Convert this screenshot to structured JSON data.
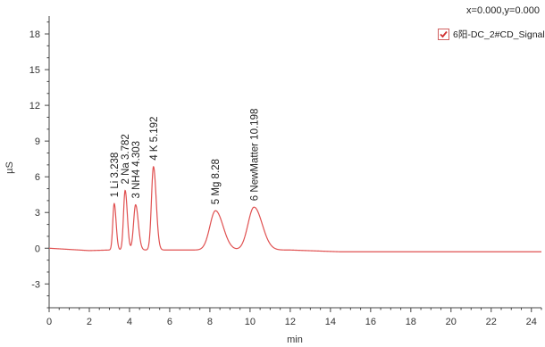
{
  "coord_readout": "x=0.000,y=0.000",
  "legend": {
    "series_label": "6阳-DC_2#CD_Signal",
    "checked": true
  },
  "colors": {
    "trace": "#e05050",
    "check": "#d03030",
    "axis": "#444444"
  },
  "chart_data": {
    "type": "line",
    "title": "",
    "xlabel": "min",
    "ylabel": "µS",
    "xlim": [
      0,
      24.5
    ],
    "ylim": [
      -5,
      19.5
    ],
    "x_ticks": [
      0,
      2,
      4,
      6,
      8,
      10,
      12,
      14,
      16,
      18,
      20,
      22,
      24
    ],
    "y_ticks": [
      -3,
      0,
      3,
      6,
      9,
      12,
      15,
      18
    ],
    "grid": false,
    "legend_position": "top-right",
    "series": [
      {
        "name": "6阳-DC_2#CD_Signal",
        "baseline": [
          [
            0,
            0.0
          ],
          [
            2,
            -0.2
          ],
          [
            3,
            -0.15
          ],
          [
            7,
            -0.15
          ],
          [
            12,
            -0.15
          ],
          [
            14.5,
            -0.3
          ],
          [
            24.5,
            -0.3
          ]
        ],
        "peaks": [
          {
            "label": "1 Li 3.238",
            "rt": 3.238,
            "height": 3.9,
            "width": 0.07
          },
          {
            "label": "2 Na 3.782",
            "rt": 3.782,
            "height": 5.0,
            "width": 0.08
          },
          {
            "label": "3 NH4 4.303",
            "rt": 4.303,
            "height": 3.8,
            "width": 0.1
          },
          {
            "label": "4 K 5.192",
            "rt": 5.192,
            "height": 7.0,
            "width": 0.1
          },
          {
            "label": "5 Mg 8.28",
            "rt": 8.28,
            "height": 3.3,
            "width": 0.28
          },
          {
            "label": "6 NewMatter 10.198",
            "rt": 10.198,
            "height": 3.6,
            "width": 0.3
          }
        ]
      }
    ]
  }
}
